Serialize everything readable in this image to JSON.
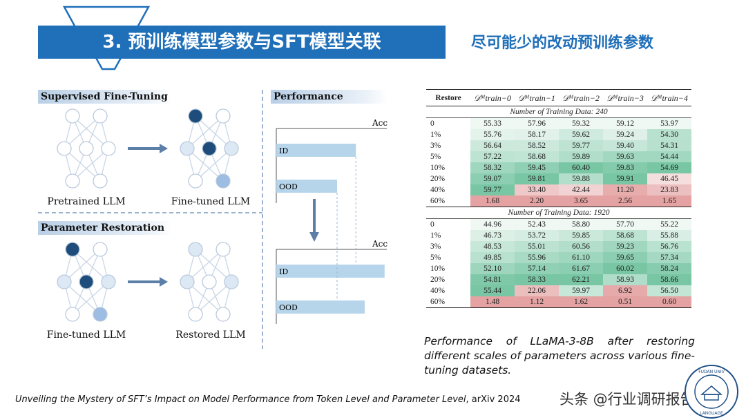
{
  "header": {
    "title": "3. 预训练模型参数与SFT模型关联",
    "subtitle": "尽可能少的改动预训练参数"
  },
  "figure": {
    "sft_label": "Supervised Fine-Tuning",
    "restore_label": "Parameter Restoration",
    "performance_label": "Performance",
    "pretrained_caption": "Pretrained LLM",
    "finetuned_caption": "Fine-tuned LLM",
    "finetuned_caption_2": "Fine-tuned LLM",
    "restored_caption": "Restored LLM",
    "acc_label": "Acc",
    "bars_top": [
      {
        "label": "ID",
        "value": 0.72
      },
      {
        "label": "OOD",
        "value": 0.55
      }
    ],
    "bars_bottom": [
      {
        "label": "ID",
        "value": 0.98
      },
      {
        "label": "OOD",
        "value": 0.8
      }
    ]
  },
  "table": {
    "headers": [
      "Restore",
      "𝒟ᴹtrain−0",
      "𝒟ᴹtrain−1",
      "𝒟ᴹtrain−2",
      "𝒟ᴹtrain−3",
      "𝒟ᴹtrain−4"
    ],
    "sections": [
      {
        "title": "Number of Training Data: 240",
        "rows": [
          {
            "label": "0",
            "values": [
              "55.33",
              "57.96",
              "59.32",
              "59.12",
              "53.97"
            ]
          },
          {
            "label": "1%",
            "values": [
              "55.76",
              "58.17",
              "59.62",
              "59.24",
              "54.30"
            ]
          },
          {
            "label": "3%",
            "values": [
              "56.64",
              "58.52",
              "59.77",
              "59.40",
              "54.31"
            ]
          },
          {
            "label": "5%",
            "values": [
              "57.22",
              "58.68",
              "59.89",
              "59.63",
              "54.44"
            ]
          },
          {
            "label": "10%",
            "values": [
              "58.32",
              "59.45",
              "60.40",
              "59.83",
              "54.69"
            ]
          },
          {
            "label": "20%",
            "values": [
              "59.07",
              "59.81",
              "59.88",
              "59.91",
              "46.45"
            ]
          },
          {
            "label": "40%",
            "values": [
              "59.77",
              "33.40",
              "42.44",
              "11.20",
              "23.83"
            ]
          },
          {
            "label": "60%",
            "values": [
              "1.68",
              "2.20",
              "3.65",
              "2.56",
              "1.65"
            ]
          }
        ]
      },
      {
        "title": "Number of Training Data: 1920",
        "rows": [
          {
            "label": "0",
            "values": [
              "44.96",
              "52.43",
              "58.80",
              "57.70",
              "55.22"
            ]
          },
          {
            "label": "1%",
            "values": [
              "46.73",
              "53.72",
              "59.85",
              "58.68",
              "55.88"
            ]
          },
          {
            "label": "3%",
            "values": [
              "48.53",
              "55.01",
              "60.56",
              "59.23",
              "56.76"
            ]
          },
          {
            "label": "5%",
            "values": [
              "49.85",
              "55.96",
              "61.10",
              "59.65",
              "57.34"
            ]
          },
          {
            "label": "10%",
            "values": [
              "52.10",
              "57.14",
              "61.67",
              "60.02",
              "58.24"
            ]
          },
          {
            "label": "20%",
            "values": [
              "54.81",
              "58.33",
              "62.21",
              "58.93",
              "58.66"
            ]
          },
          {
            "label": "40%",
            "values": [
              "55.44",
              "22.06",
              "59.97",
              "6.92",
              "56.50"
            ]
          },
          {
            "label": "60%",
            "values": [
              "1.48",
              "1.12",
              "1.62",
              "0.51",
              "0.60"
            ]
          }
        ]
      }
    ]
  },
  "caption": "Performance of LLaMA-3-8B after restoring different scales of parameters across various fine-tuning datasets.",
  "footer": {
    "paper_title": "Unveiling the Mystery of SFT’s Impact on Model Performance from Token Level and Parameter Level",
    "venue": ", arXiv 2024"
  },
  "logo_text": "FUDAN UNIVERSITY · LANGUAGE PROCESSING",
  "watermark": "头条 @行业调研报告",
  "colors": {
    "accent": "#1f6fb9",
    "node_dark": "#1e4d7b",
    "node_light": "#dde8f5",
    "node_mid": "#9dbde3",
    "bar": "#b7d5ea"
  }
}
